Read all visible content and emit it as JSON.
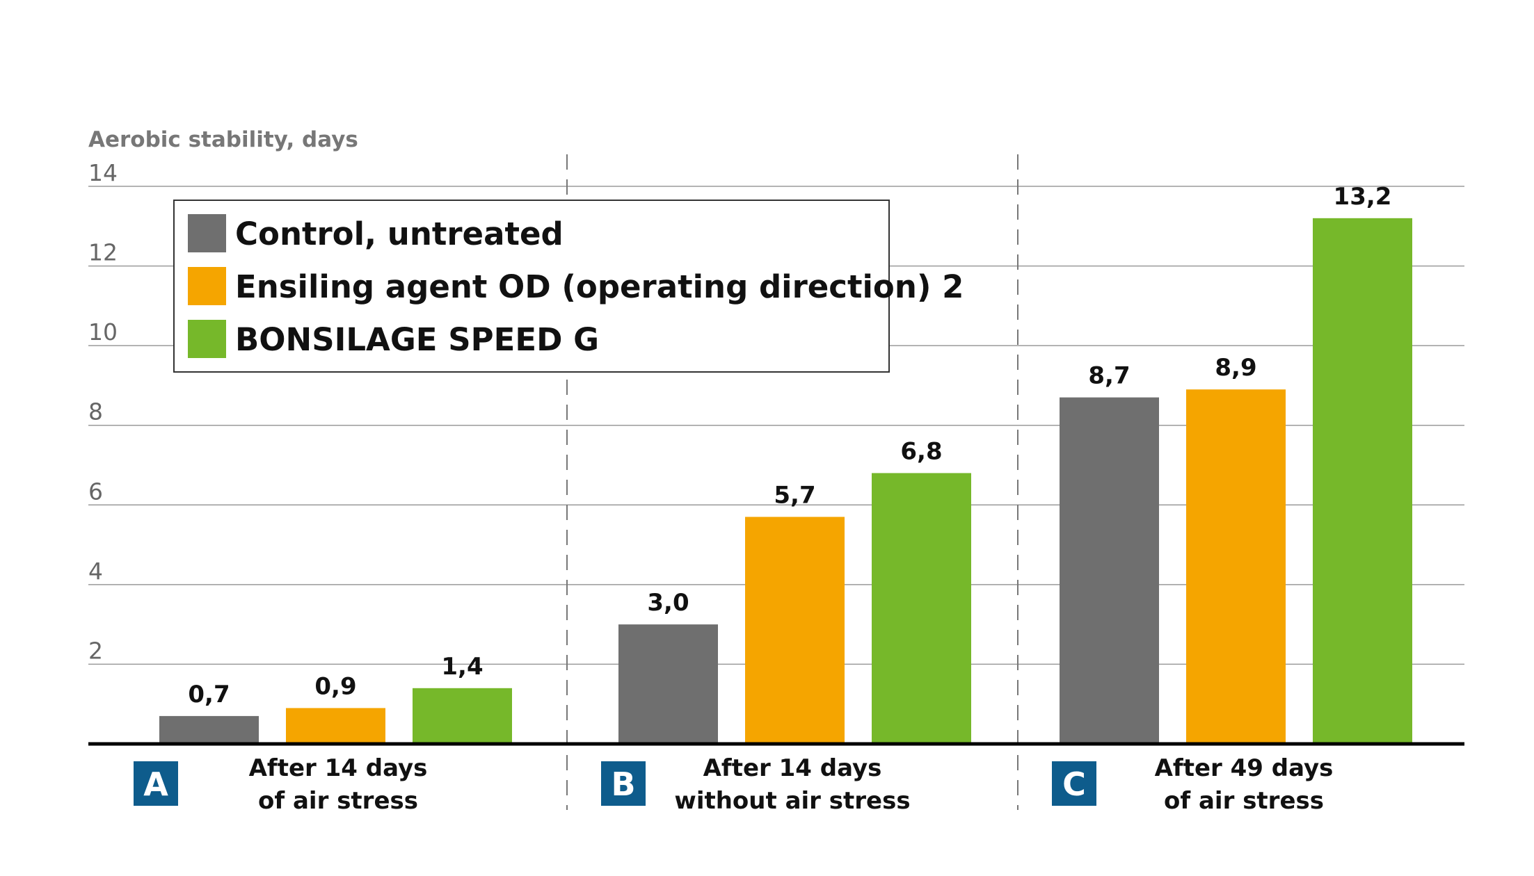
{
  "chart_data": {
    "type": "bar",
    "ylabel": "Aerobic stability, days",
    "ylim": [
      0,
      14
    ],
    "yticks": [
      "2",
      "4",
      "6",
      "8",
      "10",
      "12",
      "14"
    ],
    "grid": true,
    "legend_position": "top-left",
    "groups": [
      {
        "badge": "A",
        "label_lines": [
          "After 14 days",
          "of air stress"
        ]
      },
      {
        "badge": "B",
        "label_lines": [
          "After 14 days",
          "without air stress"
        ]
      },
      {
        "badge": "C",
        "label_lines": [
          "After 49 days",
          "of air stress"
        ]
      }
    ],
    "series": [
      {
        "name": "Control, untreated",
        "color": "#6f6f6f",
        "values": [
          0.7,
          3.0,
          8.7
        ],
        "labels": [
          "0,7",
          "3,0",
          "8,7"
        ]
      },
      {
        "name": "Ensiling agent OD (operating direction) 2",
        "color": "#f5a500",
        "values": [
          0.9,
          5.7,
          8.9
        ],
        "labels": [
          "0,9",
          "5,7",
          "8,9"
        ]
      },
      {
        "name": "BONSILAGE SPEED G",
        "color": "#76b82a",
        "values": [
          1.4,
          6.8,
          13.2
        ],
        "labels": [
          "1,4",
          "6,8",
          "13,2"
        ]
      }
    ],
    "badge_color": "#0e5c8c"
  }
}
